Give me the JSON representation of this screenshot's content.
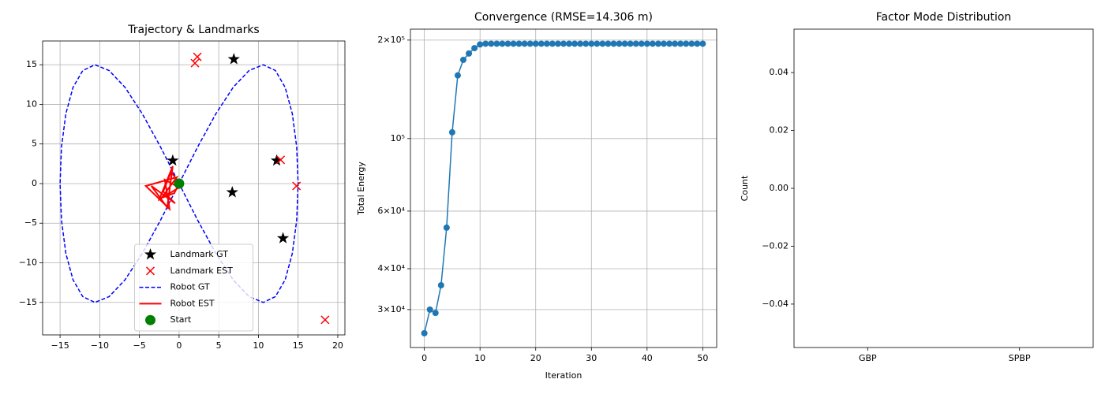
{
  "chart_data": [
    {
      "type": "scatter",
      "title": "Trajectory & Landmarks",
      "xlim": [
        -17.2,
        20.9
      ],
      "ylim": [
        -19.1,
        18.0
      ],
      "xticks": [
        {
          "value": -15,
          "label": "−15"
        },
        {
          "value": -10,
          "label": "−10"
        },
        {
          "value": -5,
          "label": "−5"
        },
        0,
        5,
        10,
        15,
        20
      ],
      "yticks": [
        {
          "value": -15,
          "label": "−15"
        },
        {
          "value": -10,
          "label": "−10"
        },
        {
          "value": -5,
          "label": "−5"
        },
        0,
        5,
        10,
        15
      ],
      "grid": true,
      "legend": "lower center",
      "series": [
        {
          "name": "Landmark GT",
          "color": "#000000",
          "marker": "*",
          "x": [
            -0.8,
            6.9,
            12.3,
            6.7,
            13.1
          ],
          "y": [
            2.9,
            15.7,
            2.9,
            -1.1,
            -6.9
          ]
        },
        {
          "name": "Landmark EST",
          "color": "#ff0000",
          "marker": "x",
          "x": [
            2.3,
            2.0,
            12.8,
            14.8,
            18.4
          ],
          "y": [
            16.0,
            15.2,
            3.0,
            -0.3,
            -17.2
          ]
        },
        {
          "name": "Robot GT",
          "color": "#0000ff",
          "linestyle": "--",
          "x": [
            0,
            2.35,
            4.64,
            6.81,
            8.82,
            10.61,
            12.14,
            13.37,
            14.27,
            14.82,
            15,
            14.82,
            14.27,
            13.37,
            12.14,
            10.61,
            8.82,
            6.81,
            4.64,
            2.35,
            0,
            -2.35,
            -4.64,
            -6.81,
            -8.82,
            -10.61,
            -12.14,
            -13.37,
            -14.27,
            -14.82,
            -15,
            -14.82,
            -14.27,
            -13.37,
            -12.14,
            -10.61,
            -8.82,
            -6.81,
            -4.64,
            -2.35,
            0
          ],
          "y": [
            0,
            4.64,
            8.82,
            12.14,
            14.27,
            15,
            14.27,
            12.14,
            8.82,
            4.64,
            0,
            -4.64,
            -8.82,
            -12.14,
            -14.27,
            -15,
            -14.27,
            -12.14,
            -8.82,
            -4.64,
            0,
            4.64,
            8.82,
            12.14,
            14.27,
            15,
            14.27,
            12.14,
            8.82,
            4.64,
            0,
            -4.64,
            -8.82,
            -12.14,
            -14.27,
            -15,
            -14.27,
            -12.14,
            -8.82,
            -4.64,
            0
          ]
        },
        {
          "name": "Robot EST",
          "color": "#ff0000",
          "linestyle": "-",
          "x": [
            0,
            -1,
            -2,
            -0.5,
            -3.5,
            -1.5,
            -0.8,
            -2.5,
            0,
            -1.8,
            -1.2,
            -4.2,
            -0.3,
            -2.2,
            -0.6,
            0
          ],
          "y": [
            0,
            1.5,
            -1,
            -2.5,
            -0.3,
            -3,
            2.2,
            -2,
            -0.5,
            0.5,
            -3.2,
            -0.3,
            0.8,
            -1.8,
            -1.2,
            0
          ]
        },
        {
          "name": "Start",
          "color": "#008000",
          "marker": "o",
          "x": [
            0
          ],
          "y": [
            0
          ]
        }
      ]
    },
    {
      "type": "line",
      "title": "Convergence (RMSE=14.306 m)",
      "xlabel": "Iteration",
      "ylabel": "Total Energy",
      "log_y": true,
      "xlim": [
        -2.5,
        52.5
      ],
      "ylim": [
        22970,
        216000
      ],
      "xticks": [
        0,
        10,
        20,
        30,
        40,
        50
      ],
      "yticks": [
        {
          "value": 30000,
          "label": "3×10⁴"
        },
        {
          "value": 40000,
          "label": "4×10⁴"
        },
        {
          "value": 60000,
          "label": "6×10⁴"
        },
        {
          "value": 100000,
          "label": "10⁵"
        },
        {
          "value": 200000,
          "label": "2×10⁵"
        }
      ],
      "grid": true,
      "x": [
        0,
        1,
        2,
        3,
        4,
        5,
        6,
        7,
        8,
        9,
        10,
        11,
        12,
        13,
        14,
        15,
        16,
        17,
        18,
        19,
        20,
        21,
        22,
        23,
        24,
        25,
        26,
        27,
        28,
        29,
        30,
        31,
        32,
        33,
        34,
        35,
        36,
        37,
        38,
        39,
        40,
        41,
        42,
        43,
        44,
        45,
        46,
        47,
        48,
        49,
        50
      ],
      "series": [
        {
          "color": "#1f77b4",
          "marker": "o",
          "values": [
            25400,
            30000,
            29300,
            35600,
            53400,
            104500,
            156000,
            174000,
            182000,
            189000,
            194000,
            195000,
            195000,
            195000,
            195000,
            195000,
            195000,
            195000,
            195000,
            195000,
            195000,
            195000,
            195000,
            195000,
            195000,
            195000,
            195000,
            195000,
            195000,
            195000,
            195000,
            195000,
            195000,
            195000,
            195000,
            195000,
            195000,
            195000,
            195000,
            195000,
            195000,
            195000,
            195000,
            195000,
            195000,
            195000,
            195000,
            195000,
            195000,
            195000,
            195000
          ]
        }
      ]
    },
    {
      "type": "bar",
      "title": "Factor Mode Distribution",
      "ylabel": "Count",
      "categories": [
        "GBP",
        "SPBP"
      ],
      "values": [
        0,
        0
      ],
      "color": "#1f77b4",
      "ylim": [
        -0.055,
        0.055
      ],
      "yticks": [
        {
          "value": -0.04,
          "label": "−0.04"
        },
        {
          "value": -0.02,
          "label": "−0.02"
        },
        {
          "value": 0,
          "label": "0.00"
        },
        0.02,
        0.04
      ]
    }
  ]
}
